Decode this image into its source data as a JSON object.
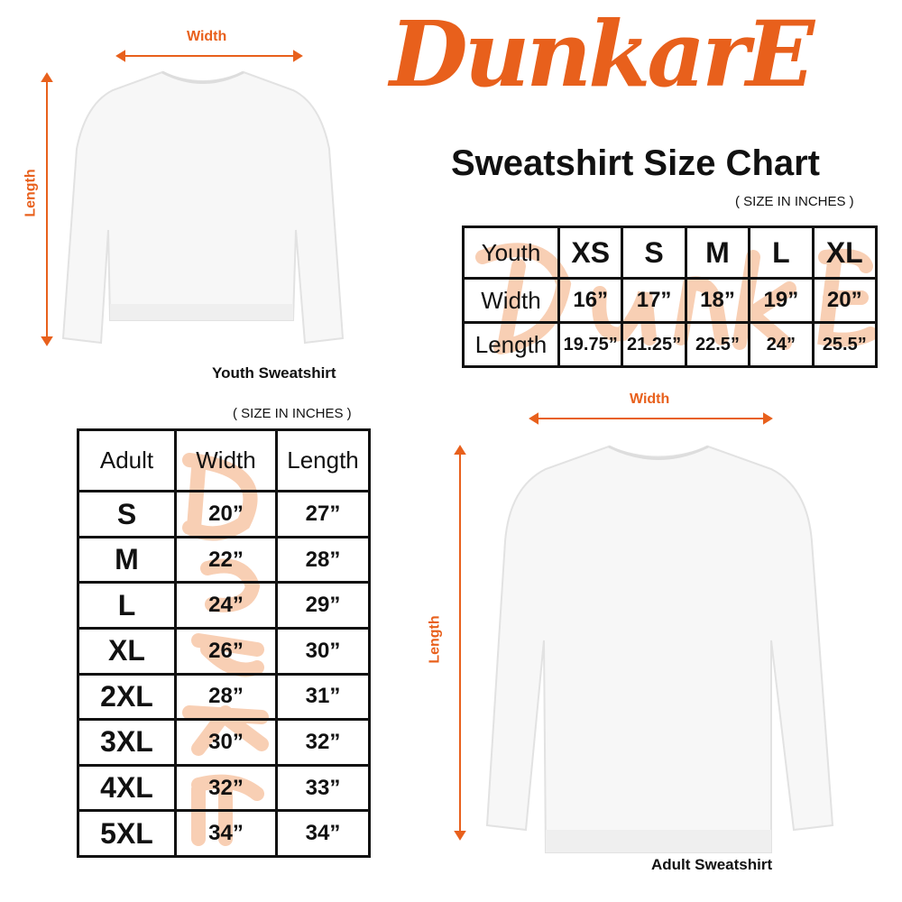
{
  "brand": {
    "logo_text": "DunkarE",
    "color": "#e8601c"
  },
  "title": "Sweatshirt Size Chart",
  "youth": {
    "caption": "Youth Sweatshirt",
    "width_label": "Width",
    "length_label": "Length",
    "unit_note": "( SIZE IN INCHES )",
    "table": {
      "header": [
        "Youth",
        "XS",
        "S",
        "M",
        "L",
        "XL"
      ],
      "rows": [
        [
          "Width",
          "16”",
          "17”",
          "18”",
          "19”",
          "20”"
        ],
        [
          "Length",
          "19.75”",
          "21.25”",
          "22.5”",
          "24”",
          "25.5”"
        ]
      ]
    }
  },
  "adult": {
    "caption": "Adult Sweatshirt",
    "width_label": "Width",
    "length_label": "Length",
    "unit_note": "( SIZE IN INCHES )",
    "table": {
      "header": [
        "Adult",
        "Width",
        "Length"
      ],
      "rows": [
        [
          "S",
          "20”",
          "27”"
        ],
        [
          "M",
          "22”",
          "28”"
        ],
        [
          "L",
          "24”",
          "29”"
        ],
        [
          "XL",
          "26”",
          "30”"
        ],
        [
          "2XL",
          "28”",
          "31”"
        ],
        [
          "3XL",
          "30”",
          "32”"
        ],
        [
          "4XL",
          "32”",
          "33”"
        ],
        [
          "5XL",
          "34”",
          "34”"
        ]
      ]
    }
  }
}
